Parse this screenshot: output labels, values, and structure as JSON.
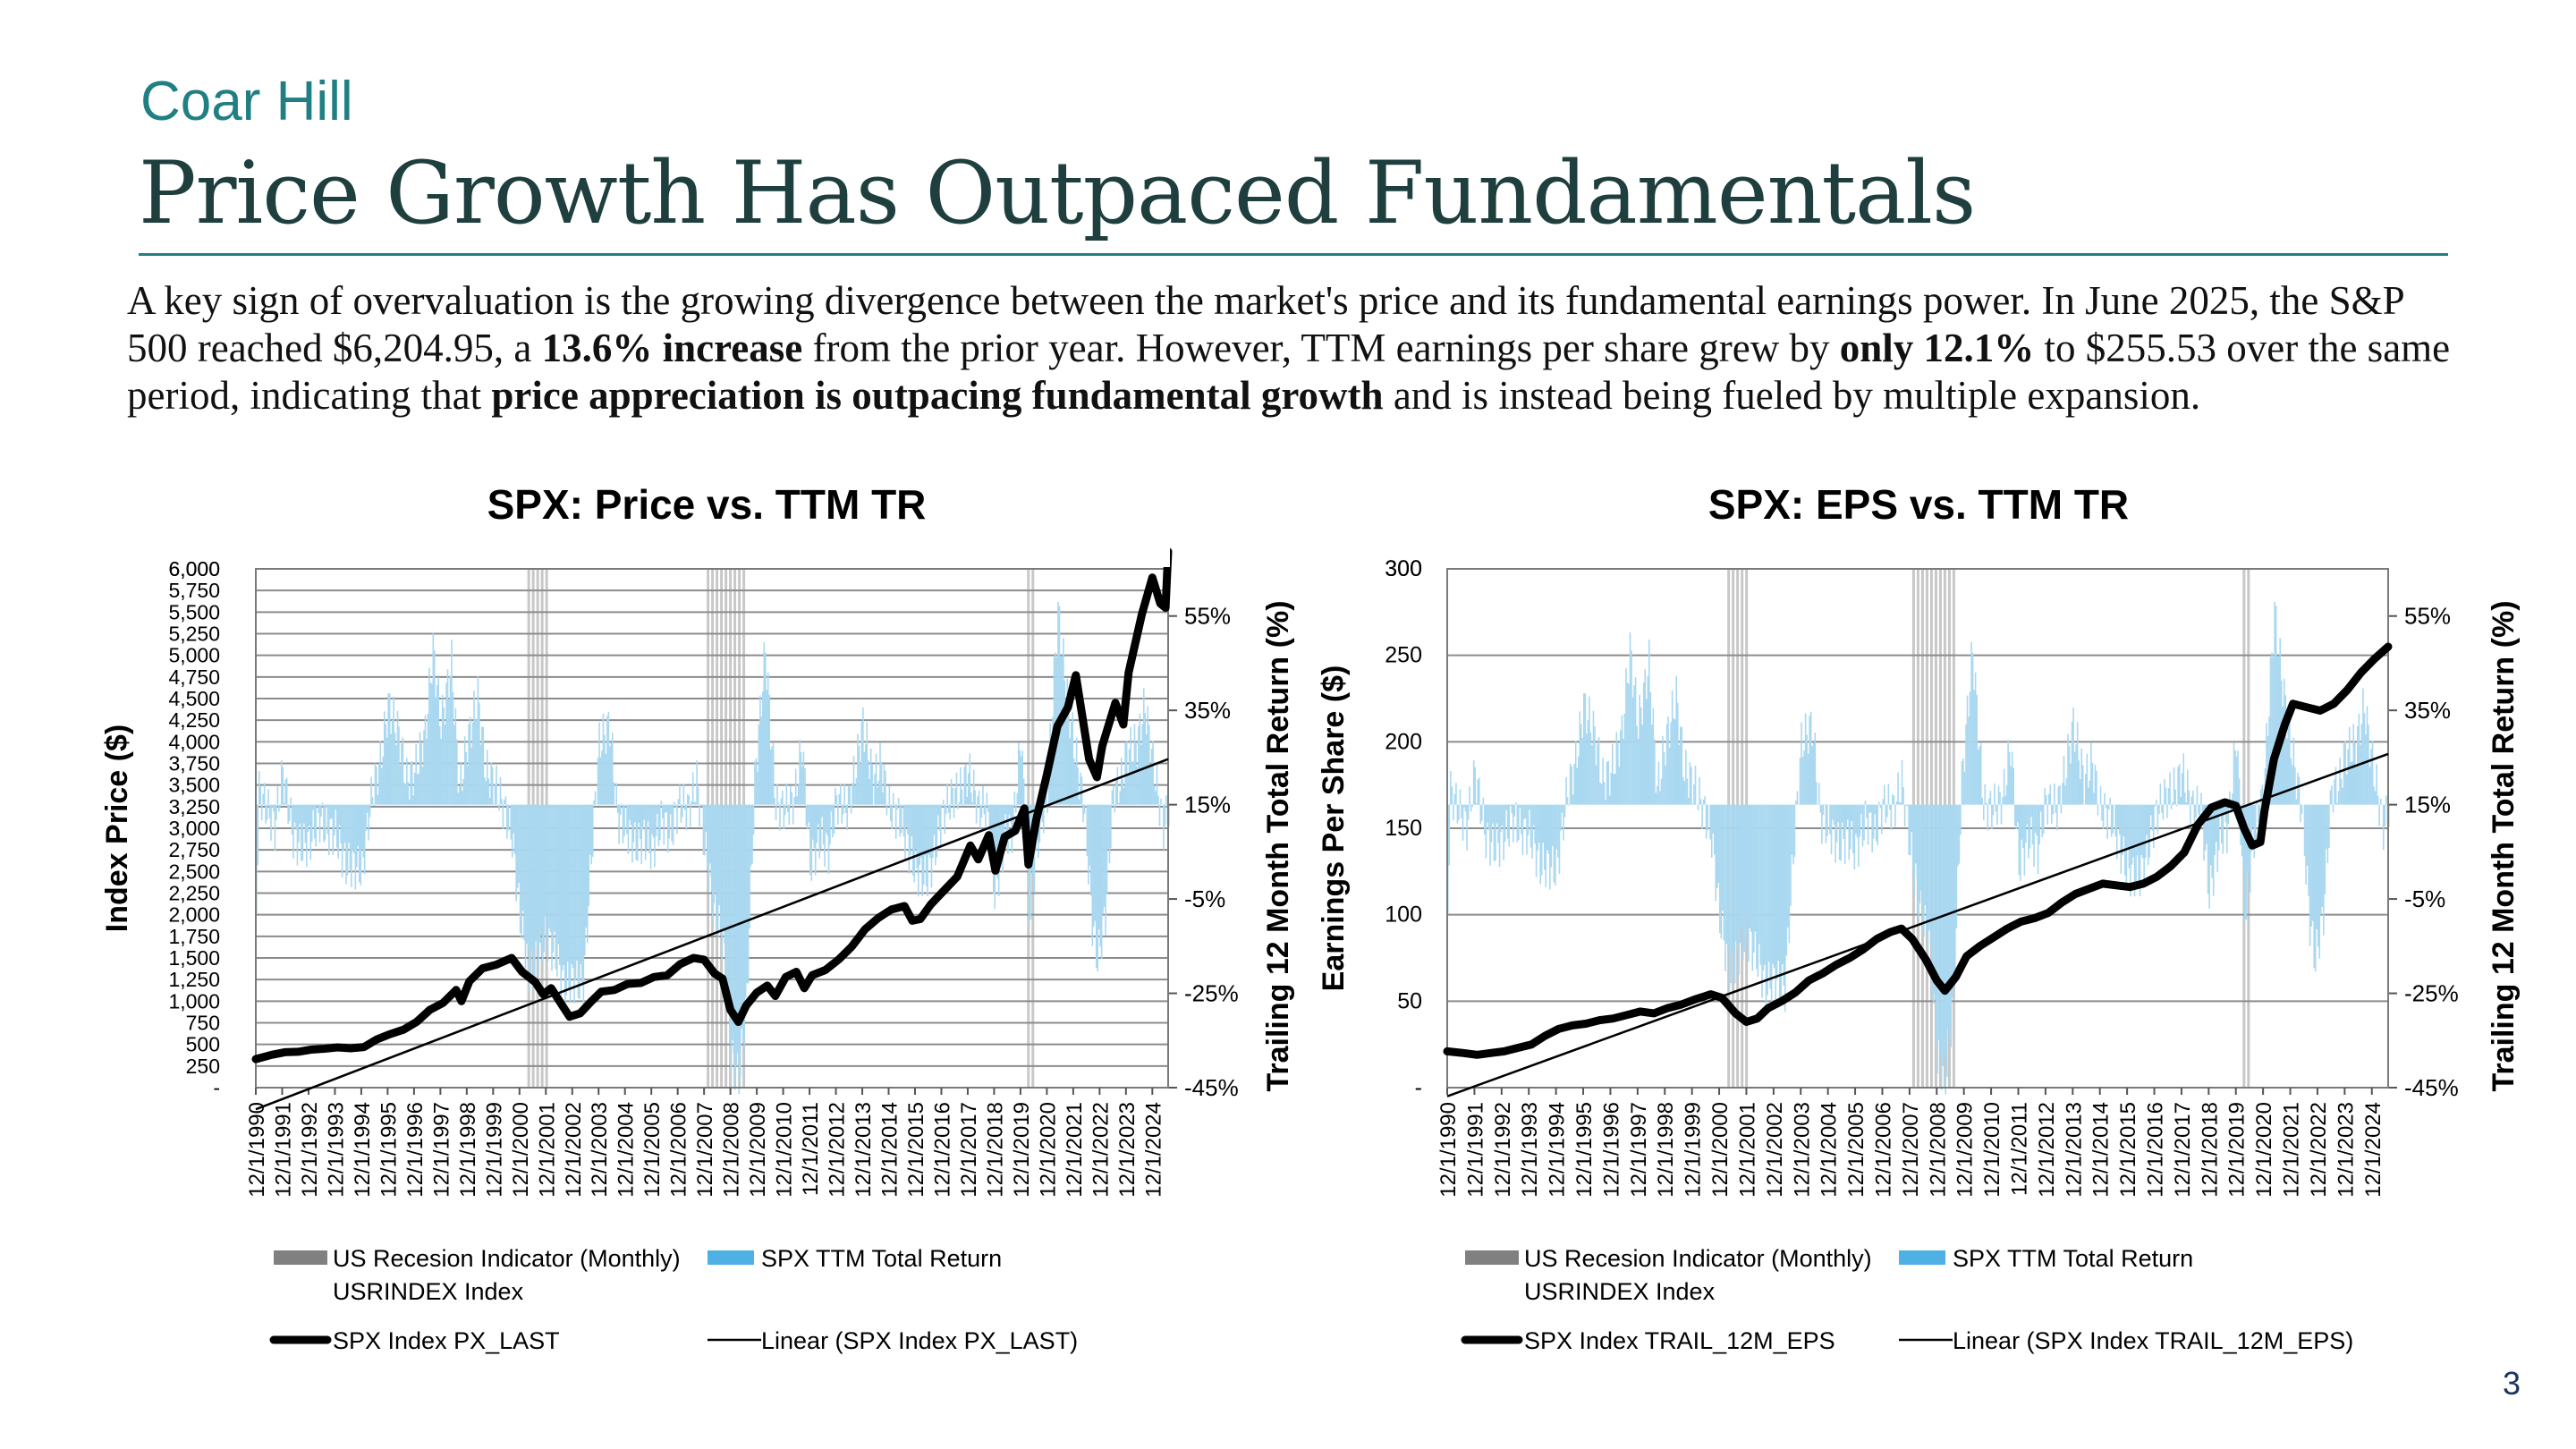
{
  "brand": "Coar Hill",
  "title": "Price Growth Has Outpaced Fundamentals",
  "body": {
    "s1": "A key sign of overvaluation is the growing divergence between the market's price and its fundamental earnings power. In June 2025, the S&P 500 reached $6,204.95, a ",
    "b1": "13.6% increase",
    "s2": " from the prior year. However, TTM earnings per share grew by ",
    "b2": "only 12.1%",
    "s3": " to $255.53 over the same period, indicating that ",
    "b3": "price appreciation is outpacing fundamental growth",
    "s4": " and is instead being fueled by multiple expansion."
  },
  "page_number": "3",
  "colors": {
    "brand": "#1f7f82",
    "title": "#1e3f3e",
    "recession": "#c8c8c8",
    "ttm_bar": "#a9d8f0",
    "series": "#000000",
    "grid": "#8c8c8c"
  },
  "x_ticks": [
    "12/1/1990",
    "12/1/1991",
    "12/1/1992",
    "12/1/1993",
    "12/1/1994",
    "12/1/1995",
    "12/1/1996",
    "12/1/1997",
    "12/1/1998",
    "12/1/1999",
    "12/1/2000",
    "12/1/2001",
    "12/1/2002",
    "12/1/2003",
    "12/1/2004",
    "12/1/2005",
    "12/1/2006",
    "12/1/2007",
    "12/1/2008",
    "12/1/2009",
    "12/1/2010",
    "12/1/2011",
    "12/1/2012",
    "12/1/2013",
    "12/1/2014",
    "12/1/2015",
    "12/1/2016",
    "12/1/2017",
    "12/1/2018",
    "12/1/2019",
    "12/1/2020",
    "12/1/2021",
    "12/1/2022",
    "12/1/2023",
    "12/1/2024"
  ],
  "recessions": [
    [
      2001.2,
      2001.9
    ],
    [
      2008.0,
      2009.5
    ],
    [
      2020.15,
      2020.35
    ]
  ],
  "ttm_return": [
    [
      1990.9,
      -6
    ],
    [
      1991.0,
      18
    ],
    [
      1991.3,
      14
    ],
    [
      1991.6,
      10
    ],
    [
      1991.9,
      22
    ],
    [
      1992.3,
      8
    ],
    [
      1992.6,
      6
    ],
    [
      1992.9,
      7
    ],
    [
      1993.3,
      12
    ],
    [
      1993.6,
      9
    ],
    [
      1993.9,
      9
    ],
    [
      1994.3,
      2
    ],
    [
      1994.6,
      2
    ],
    [
      1994.9,
      1
    ],
    [
      1995.3,
      18
    ],
    [
      1995.6,
      24
    ],
    [
      1995.9,
      36
    ],
    [
      1996.3,
      30
    ],
    [
      1996.6,
      20
    ],
    [
      1996.9,
      22
    ],
    [
      1997.3,
      30
    ],
    [
      1997.6,
      48
    ],
    [
      1997.9,
      32
    ],
    [
      1998.3,
      45
    ],
    [
      1998.6,
      18
    ],
    [
      1998.9,
      28
    ],
    [
      1999.3,
      38
    ],
    [
      1999.6,
      22
    ],
    [
      1999.9,
      20
    ],
    [
      2000.3,
      14
    ],
    [
      2000.6,
      8
    ],
    [
      2000.9,
      -9
    ],
    [
      2001.3,
      -22
    ],
    [
      2001.6,
      -16
    ],
    [
      2001.9,
      -13
    ],
    [
      2002.3,
      -18
    ],
    [
      2002.6,
      -24
    ],
    [
      2002.9,
      -22
    ],
    [
      2003.3,
      -24
    ],
    [
      2003.6,
      4
    ],
    [
      2003.9,
      28
    ],
    [
      2004.3,
      32
    ],
    [
      2004.6,
      12
    ],
    [
      2004.9,
      10
    ],
    [
      2005.3,
      6
    ],
    [
      2005.6,
      8
    ],
    [
      2005.9,
      5
    ],
    [
      2006.3,
      12
    ],
    [
      2006.6,
      8
    ],
    [
      2006.9,
      15
    ],
    [
      2007.3,
      14
    ],
    [
      2007.6,
      20
    ],
    [
      2007.9,
      6
    ],
    [
      2008.3,
      -8
    ],
    [
      2008.6,
      -14
    ],
    [
      2008.9,
      -38
    ],
    [
      2009.2,
      -43
    ],
    [
      2009.5,
      -26
    ],
    [
      2009.8,
      20
    ],
    [
      2010.2,
      48
    ],
    [
      2010.6,
      15
    ],
    [
      2010.9,
      14
    ],
    [
      2011.3,
      16
    ],
    [
      2011.6,
      28
    ],
    [
      2011.9,
      2
    ],
    [
      2012.3,
      8
    ],
    [
      2012.6,
      5
    ],
    [
      2012.9,
      16
    ],
    [
      2013.3,
      14
    ],
    [
      2013.6,
      22
    ],
    [
      2013.9,
      32
    ],
    [
      2014.3,
      20
    ],
    [
      2014.6,
      24
    ],
    [
      2014.9,
      14
    ],
    [
      2015.3,
      12
    ],
    [
      2015.6,
      6
    ],
    [
      2015.9,
      1
    ],
    [
      2016.3,
      -1
    ],
    [
      2016.6,
      4
    ],
    [
      2016.9,
      12
    ],
    [
      2017.3,
      17
    ],
    [
      2017.6,
      18
    ],
    [
      2017.9,
      22
    ],
    [
      2018.3,
      14
    ],
    [
      2018.6,
      14
    ],
    [
      2018.9,
      -4
    ],
    [
      2019.3,
      8
    ],
    [
      2019.6,
      10
    ],
    [
      2019.9,
      30
    ],
    [
      2020.2,
      -8
    ],
    [
      2020.5,
      6
    ],
    [
      2020.9,
      18
    ],
    [
      2021.3,
      56
    ],
    [
      2021.6,
      40
    ],
    [
      2021.9,
      28
    ],
    [
      2022.3,
      14
    ],
    [
      2022.6,
      -10
    ],
    [
      2022.8,
      -18
    ],
    [
      2023.1,
      -8
    ],
    [
      2023.4,
      18
    ],
    [
      2023.7,
      20
    ],
    [
      2023.9,
      26
    ],
    [
      2024.3,
      28
    ],
    [
      2024.6,
      36
    ],
    [
      2024.9,
      24
    ],
    [
      2025.3,
      10
    ],
    [
      2025.5,
      14
    ]
  ],
  "chart_data": [
    {
      "type": "line",
      "title": "SPX: Price vs. TTM TR",
      "ylabel": "Index Price ($)",
      "y2label": "Trailing 12 Month Total Return (%)",
      "xlim": [
        1990.9,
        2025.5
      ],
      "ylim": [
        0,
        6000
      ],
      "y_ticks": [
        "-",
        "250",
        "500",
        "750",
        "1,000",
        "1,250",
        "1,500",
        "1,750",
        "2,000",
        "2,250",
        "2,500",
        "2,750",
        "3,000",
        "3,250",
        "3,500",
        "3,750",
        "4,000",
        "4,250",
        "4,500",
        "4,750",
        "5,000",
        "5,250",
        "5,500",
        "5,750",
        "6,000"
      ],
      "y2lim": [
        -45,
        65
      ],
      "y2_ticks": [
        "-45%",
        "-25%",
        "-5%",
        "15%",
        "35%",
        "55%"
      ],
      "grid": true,
      "legend_position": "bottom",
      "legend": [
        {
          "label": "US Recesion Indicator (Monthly) USRINDEX Index",
          "kind": "box-gray"
        },
        {
          "label": "SPX TTM Total Return",
          "kind": "box-blue"
        },
        {
          "label": "SPX Index PX_LAST",
          "kind": "line-thick"
        },
        {
          "label": "Linear (SPX Index PX_LAST)",
          "kind": "line-thin"
        }
      ],
      "series": [
        {
          "name": "SPX Index PX_LAST",
          "points": [
            [
              1990.9,
              330
            ],
            [
              1991.5,
              380
            ],
            [
              1992.0,
              410
            ],
            [
              1992.5,
              415
            ],
            [
              1993.0,
              440
            ],
            [
              1993.5,
              450
            ],
            [
              1994.0,
              465
            ],
            [
              1994.5,
              455
            ],
            [
              1995.0,
              470
            ],
            [
              1995.5,
              560
            ],
            [
              1996.0,
              620
            ],
            [
              1996.5,
              670
            ],
            [
              1997.0,
              760
            ],
            [
              1997.5,
              900
            ],
            [
              1998.0,
              980
            ],
            [
              1998.5,
              1130
            ],
            [
              1998.7,
              1000
            ],
            [
              1999.0,
              1230
            ],
            [
              1999.5,
              1380
            ],
            [
              2000.0,
              1420
            ],
            [
              2000.6,
              1500
            ],
            [
              2001.0,
              1340
            ],
            [
              2001.5,
              1220
            ],
            [
              2001.8,
              1080
            ],
            [
              2002.1,
              1150
            ],
            [
              2002.5,
              960
            ],
            [
              2002.8,
              820
            ],
            [
              2003.2,
              860
            ],
            [
              2003.6,
              990
            ],
            [
              2004.0,
              1110
            ],
            [
              2004.5,
              1130
            ],
            [
              2005.0,
              1200
            ],
            [
              2005.5,
              1210
            ],
            [
              2006.0,
              1280
            ],
            [
              2006.5,
              1300
            ],
            [
              2007.0,
              1430
            ],
            [
              2007.5,
              1500
            ],
            [
              2007.9,
              1480
            ],
            [
              2008.3,
              1320
            ],
            [
              2008.6,
              1260
            ],
            [
              2008.9,
              900
            ],
            [
              2009.2,
              760
            ],
            [
              2009.5,
              950
            ],
            [
              2009.9,
              1100
            ],
            [
              2010.3,
              1180
            ],
            [
              2010.6,
              1060
            ],
            [
              2011.0,
              1280
            ],
            [
              2011.4,
              1340
            ],
            [
              2011.7,
              1150
            ],
            [
              2012.0,
              1300
            ],
            [
              2012.5,
              1360
            ],
            [
              2013.0,
              1480
            ],
            [
              2013.5,
              1630
            ],
            [
              2014.0,
              1830
            ],
            [
              2014.5,
              1960
            ],
            [
              2015.0,
              2060
            ],
            [
              2015.5,
              2100
            ],
            [
              2015.8,
              1930
            ],
            [
              2016.1,
              1950
            ],
            [
              2016.5,
              2120
            ],
            [
              2017.0,
              2280
            ],
            [
              2017.5,
              2440
            ],
            [
              2018.0,
              2800
            ],
            [
              2018.3,
              2640
            ],
            [
              2018.7,
              2920
            ],
            [
              2018.95,
              2510
            ],
            [
              2019.3,
              2900
            ],
            [
              2019.7,
              2970
            ],
            [
              2020.05,
              3230
            ],
            [
              2020.2,
              2580
            ],
            [
              2020.5,
              3100
            ],
            [
              2020.9,
              3620
            ],
            [
              2021.3,
              4180
            ],
            [
              2021.7,
              4400
            ],
            [
              2022.0,
              4770
            ],
            [
              2022.5,
              3800
            ],
            [
              2022.8,
              3590
            ],
            [
              2023.0,
              3950
            ],
            [
              2023.5,
              4450
            ],
            [
              2023.8,
              4200
            ],
            [
              2024.0,
              4800
            ],
            [
              2024.5,
              5470
            ],
            [
              2024.9,
              5900
            ],
            [
              2025.2,
              5600
            ],
            [
              2025.4,
              5550
            ],
            [
              2025.5,
              6200
            ]
          ]
        },
        {
          "name": "Linear (SPX Index PX_LAST)",
          "points": [
            [
              1990.9,
              -250
            ],
            [
              2025.5,
              3800
            ]
          ]
        }
      ]
    },
    {
      "type": "line",
      "title": "SPX: EPS vs. TTM TR",
      "ylabel": "Earnings Per Share ($)",
      "y2label": "Trailing 12 Month Total Return (%)",
      "xlim": [
        1990.9,
        2025.5
      ],
      "ylim": [
        0,
        300
      ],
      "y_ticks": [
        "-",
        "50",
        "100",
        "150",
        "200",
        "250",
        "300"
      ],
      "y2lim": [
        -45,
        65
      ],
      "y2_ticks": [
        "-45%",
        "-25%",
        "-5%",
        "15%",
        "35%",
        "55%"
      ],
      "grid": true,
      "legend_position": "bottom",
      "legend": [
        {
          "label": "US Recesion Indicator (Monthly) USRINDEX Index",
          "kind": "box-gray"
        },
        {
          "label": "SPX TTM Total Return",
          "kind": "box-blue"
        },
        {
          "label": "SPX Index TRAIL_12M_EPS",
          "kind": "line-thick"
        },
        {
          "label": "Linear (SPX Index TRAIL_12M_EPS)",
          "kind": "line-thin"
        }
      ],
      "series": [
        {
          "name": "SPX Index TRAIL_12M_EPS",
          "points": [
            [
              1990.9,
              21
            ],
            [
              1991.5,
              20
            ],
            [
              1992.0,
              19
            ],
            [
              1992.5,
              20
            ],
            [
              1993.0,
              21
            ],
            [
              1993.5,
              23
            ],
            [
              1994.0,
              25
            ],
            [
              1994.5,
              30
            ],
            [
              1995.0,
              34
            ],
            [
              1995.5,
              36
            ],
            [
              1996.0,
              37
            ],
            [
              1996.5,
              39
            ],
            [
              1997.0,
              40
            ],
            [
              1997.5,
              42
            ],
            [
              1998.0,
              44
            ],
            [
              1998.5,
              43
            ],
            [
              1999.0,
              46
            ],
            [
              1999.5,
              48
            ],
            [
              2000.0,
              51
            ],
            [
              2000.6,
              54
            ],
            [
              2001.0,
              52
            ],
            [
              2001.5,
              43
            ],
            [
              2001.9,
              38
            ],
            [
              2002.3,
              40
            ],
            [
              2002.7,
              46
            ],
            [
              2003.2,
              50
            ],
            [
              2003.7,
              55
            ],
            [
              2004.2,
              62
            ],
            [
              2004.7,
              66
            ],
            [
              2005.2,
              71
            ],
            [
              2005.7,
              75
            ],
            [
              2006.2,
              80
            ],
            [
              2006.7,
              86
            ],
            [
              2007.2,
              90
            ],
            [
              2007.6,
              92
            ],
            [
              2008.0,
              86
            ],
            [
              2008.5,
              74
            ],
            [
              2008.9,
              62
            ],
            [
              2009.2,
              56
            ],
            [
              2009.6,
              64
            ],
            [
              2010.0,
              76
            ],
            [
              2010.5,
              82
            ],
            [
              2011.0,
              87
            ],
            [
              2011.5,
              92
            ],
            [
              2012.0,
              96
            ],
            [
              2012.5,
              98
            ],
            [
              2013.0,
              101
            ],
            [
              2013.5,
              107
            ],
            [
              2014.0,
              112
            ],
            [
              2014.5,
              115
            ],
            [
              2015.0,
              118
            ],
            [
              2015.5,
              117
            ],
            [
              2016.0,
              116
            ],
            [
              2016.5,
              118
            ],
            [
              2017.0,
              122
            ],
            [
              2017.5,
              128
            ],
            [
              2018.0,
              136
            ],
            [
              2018.5,
              152
            ],
            [
              2019.0,
              162
            ],
            [
              2019.5,
              165
            ],
            [
              2019.9,
              163
            ],
            [
              2020.2,
              150
            ],
            [
              2020.5,
              140
            ],
            [
              2020.8,
              142
            ],
            [
              2020.95,
              160
            ],
            [
              2021.3,
              190
            ],
            [
              2021.7,
              210
            ],
            [
              2022.0,
              222
            ],
            [
              2022.5,
              220
            ],
            [
              2023.0,
              218
            ],
            [
              2023.5,
              222
            ],
            [
              2024.0,
              230
            ],
            [
              2024.5,
              240
            ],
            [
              2025.0,
              248
            ],
            [
              2025.5,
              255
            ]
          ]
        },
        {
          "name": "Linear (SPX Index TRAIL_12M_EPS)",
          "points": [
            [
              1990.9,
              -5
            ],
            [
              2025.5,
              193
            ]
          ]
        }
      ]
    }
  ]
}
